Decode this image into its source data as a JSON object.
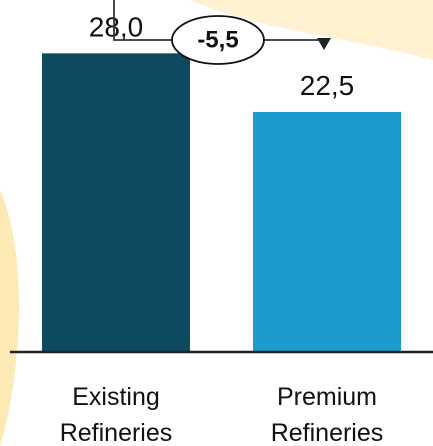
{
  "chart_data": {
    "type": "bar",
    "categories": [
      [
        "Existing",
        "Refineries"
      ],
      [
        "Premium",
        "Refineries"
      ]
    ],
    "values": [
      28.0,
      22.5
    ],
    "value_labels": [
      "28,0",
      "22,5"
    ],
    "bar_colors": [
      "#0d4a5f",
      "#1c9ccc"
    ],
    "ylim": [
      0,
      30
    ],
    "title": "",
    "xlabel": "",
    "ylabel": "",
    "grid": false,
    "annotation": {
      "text": "-5,5",
      "from": 0,
      "to": 1
    }
  },
  "colors": {
    "background": "#ffffff",
    "decoration": "#fde9b3",
    "axis": "#222222",
    "text": "#111111"
  }
}
